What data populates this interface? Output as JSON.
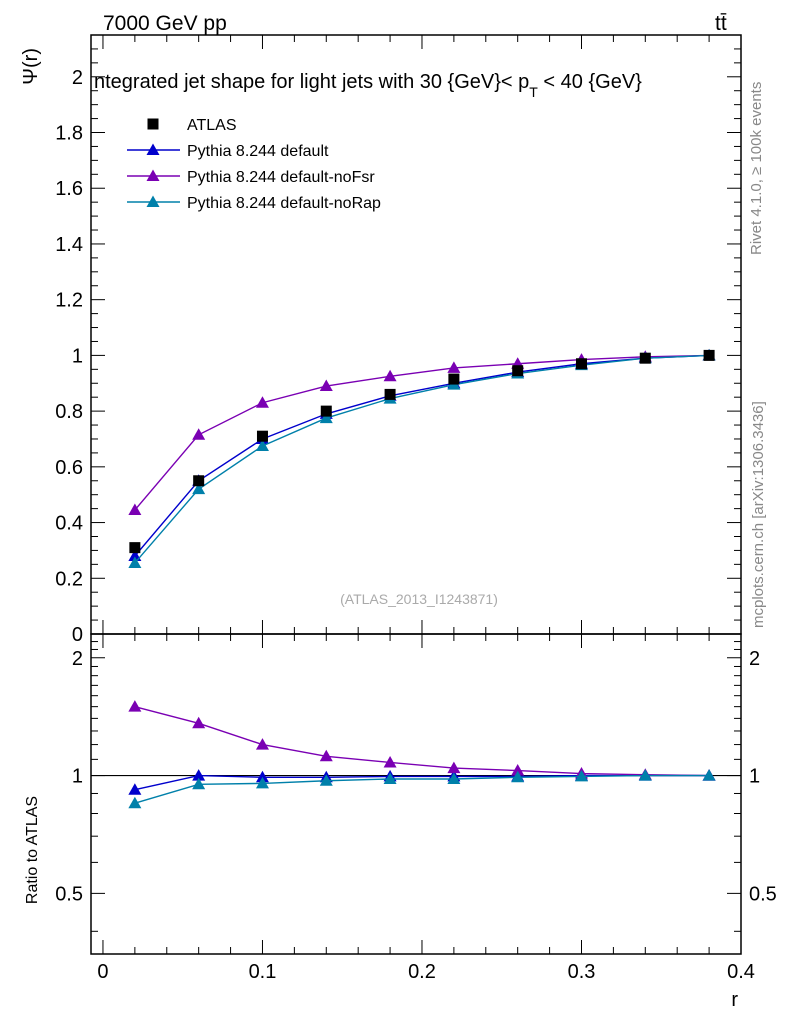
{
  "header": {
    "left": "7000 GeV pp",
    "right": "tt̄"
  },
  "side_text": {
    "rivet": "Rivet 4.1.0, ≥ 100k events",
    "mcplots": "mcplots.cern.ch [arXiv:1306.3436]"
  },
  "chart_data": {
    "type": "line",
    "title": "Integrated jet shape for light jets with 30 {GeV}< p_T < 40 {GeV}",
    "title_parts": {
      "main": "ntegrated jet shape for light jets with 30 {GeV}< p",
      "sub": "T",
      "tail": " < 40 {GeV}"
    },
    "watermark": "(ATLAS_2013_I1243871)",
    "xlabel": "r",
    "ylabel": "Ψ(r)",
    "ratio_ylabel": "Ratio to ATLAS",
    "xlim": [
      -0.0075,
      0.4
    ],
    "ylim": [
      0,
      2.15
    ],
    "ratio_ylim": [
      0.35,
      2.3
    ],
    "x": [
      0.02,
      0.06,
      0.1,
      0.14,
      0.18,
      0.22,
      0.26,
      0.3,
      0.34,
      0.38
    ],
    "x_ticks": [
      0,
      0.1,
      0.2,
      0.3,
      0.4
    ],
    "x_tick_labels": [
      "0",
      "0.1",
      "0.2",
      "0.3",
      "0.4"
    ],
    "y_ticks": [
      0,
      0.2,
      0.4,
      0.6,
      0.8,
      1,
      1.2,
      1.4,
      1.6,
      1.8,
      2
    ],
    "y_tick_labels": [
      "0",
      "0.2",
      "0.4",
      "0.6",
      "0.8",
      "1",
      "1.2",
      "1.4",
      "1.6",
      "1.8",
      "2"
    ],
    "ratio_ticks": [
      0.5,
      1,
      2
    ],
    "ratio_tick_labels": [
      "0.5",
      "1",
      "2"
    ],
    "series": [
      {
        "name": "ATLAS",
        "color": "#000000",
        "marker": "square",
        "values": [
          0.31,
          0.55,
          0.71,
          0.8,
          0.86,
          0.915,
          0.945,
          0.97,
          0.99,
          1.0
        ]
      },
      {
        "name": "Pythia 8.244 default",
        "color": "#0000cc",
        "marker": "triangle",
        "values": [
          0.28,
          0.55,
          0.7,
          0.79,
          0.855,
          0.9,
          0.94,
          0.97,
          0.99,
          1.0
        ],
        "ratio": [
          0.92,
          1.0,
          0.99,
          0.99,
          0.995,
          0.995,
          0.995,
          1.0,
          1.0,
          1.0
        ]
      },
      {
        "name": "Pythia 8.244 default-noFsr",
        "color": "#7a00b3",
        "marker": "triangle",
        "values": [
          0.445,
          0.715,
          0.83,
          0.89,
          0.925,
          0.955,
          0.97,
          0.985,
          0.995,
          1.0
        ],
        "ratio": [
          1.5,
          1.36,
          1.2,
          1.12,
          1.08,
          1.045,
          1.03,
          1.012,
          1.005,
          1.0
        ]
      },
      {
        "name": "Pythia 8.244 default-noRap",
        "color": "#0080aa",
        "marker": "triangle",
        "values": [
          0.255,
          0.52,
          0.675,
          0.775,
          0.845,
          0.895,
          0.935,
          0.965,
          0.99,
          1.0
        ],
        "ratio": [
          0.85,
          0.95,
          0.955,
          0.97,
          0.98,
          0.98,
          0.99,
          0.995,
          1.0,
          1.0
        ]
      }
    ]
  }
}
